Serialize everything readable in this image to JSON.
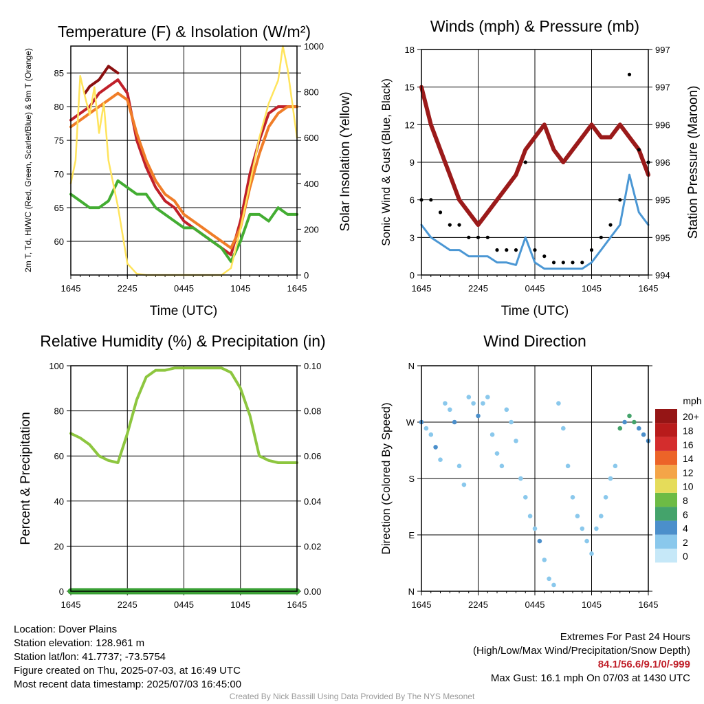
{
  "chart_data": [
    {
      "type": "line",
      "title": "Temperature (F) & Insolation (W/m²)",
      "ylabel_left": "2m T, Td, HI/WC (Red, Green, Scarlet/Blue) & 9m T (Orange)",
      "ylabel_right": "Solar Insolation (Yellow)",
      "xlabel": "Time (UTC)",
      "x_ticks": [
        "1645",
        "2245",
        "0445",
        "1045",
        "1645"
      ],
      "ylim": [
        55,
        89
      ],
      "y_ticks": [
        60,
        65,
        70,
        75,
        80,
        85
      ],
      "y2lim": [
        0,
        1000
      ],
      "y2_ticks": [
        0,
        200,
        400,
        600,
        800,
        1000
      ],
      "series": [
        {
          "color": "#c0202a",
          "axis": "left",
          "points": [
            [
              0,
              78
            ],
            [
              1,
              79
            ],
            [
              2,
              80
            ],
            [
              3,
              82
            ],
            [
              4,
              83
            ],
            [
              5,
              84
            ],
            [
              6,
              82
            ],
            [
              7,
              75
            ],
            [
              8,
              71
            ],
            [
              9,
              68
            ],
            [
              10,
              66
            ],
            [
              11,
              65
            ],
            [
              12,
              63
            ],
            [
              13,
              62
            ],
            [
              14,
              61
            ],
            [
              15,
              60
            ],
            [
              16,
              59
            ],
            [
              17,
              58
            ],
            [
              18,
              63
            ],
            [
              19,
              70
            ],
            [
              20,
              75
            ],
            [
              21,
              79
            ],
            [
              22,
              80
            ],
            [
              23,
              80
            ],
            [
              24,
              80
            ]
          ]
        },
        {
          "color": "#8b1010",
          "axis": "left",
          "points": [
            [
              1.5,
              82
            ],
            [
              2,
              83
            ],
            [
              3,
              84
            ],
            [
              4,
              86
            ],
            [
              5,
              85
            ]
          ]
        },
        {
          "color": "#f07d28",
          "axis": "left",
          "points": [
            [
              0,
              77
            ],
            [
              1,
              78
            ],
            [
              2,
              79
            ],
            [
              3,
              80
            ],
            [
              4,
              81
            ],
            [
              5,
              82
            ],
            [
              6,
              81
            ],
            [
              7,
              76
            ],
            [
              8,
              72
            ],
            [
              9,
              69
            ],
            [
              10,
              67
            ],
            [
              11,
              66
            ],
            [
              12,
              64
            ],
            [
              13,
              63
            ],
            [
              14,
              62
            ],
            [
              15,
              61
            ],
            [
              16,
              60
            ],
            [
              17,
              59
            ],
            [
              18,
              62
            ],
            [
              19,
              68
            ],
            [
              20,
              73
            ],
            [
              21,
              77
            ],
            [
              22,
              79
            ],
            [
              23,
              80
            ],
            [
              24,
              80
            ]
          ]
        },
        {
          "color": "#43ad32",
          "axis": "left",
          "points": [
            [
              0,
              67
            ],
            [
              1,
              66
            ],
            [
              2,
              65
            ],
            [
              3,
              65
            ],
            [
              4,
              66
            ],
            [
              5,
              69
            ],
            [
              6,
              68
            ],
            [
              7,
              67
            ],
            [
              8,
              67
            ],
            [
              9,
              65
            ],
            [
              10,
              64
            ],
            [
              11,
              63
            ],
            [
              12,
              62
            ],
            [
              13,
              62
            ],
            [
              14,
              61
            ],
            [
              15,
              60
            ],
            [
              16,
              59
            ],
            [
              17,
              57
            ],
            [
              18,
              60
            ],
            [
              19,
              64
            ],
            [
              20,
              64
            ],
            [
              21,
              63
            ],
            [
              22,
              65
            ],
            [
              23,
              64
            ],
            [
              24,
              64
            ]
          ]
        },
        {
          "color": "#ffe45c",
          "axis": "right",
          "points": [
            [
              0,
              400
            ],
            [
              0.5,
              500
            ],
            [
              1,
              870
            ],
            [
              1.5,
              780
            ],
            [
              2,
              700
            ],
            [
              2.5,
              820
            ],
            [
              3,
              620
            ],
            [
              3.5,
              750
            ],
            [
              4,
              500
            ],
            [
              5,
              300
            ],
            [
              6,
              50
            ],
            [
              7,
              5
            ],
            [
              8,
              0
            ],
            [
              16,
              0
            ],
            [
              17,
              30
            ],
            [
              18,
              200
            ],
            [
              19,
              400
            ],
            [
              20,
              600
            ],
            [
              21,
              750
            ],
            [
              22,
              850
            ],
            [
              22.5,
              1000
            ],
            [
              23,
              900
            ],
            [
              24,
              600
            ]
          ]
        }
      ]
    },
    {
      "type": "line",
      "title": "Winds (mph) & Pressure (mb)",
      "ylabel_left": "Sonic Wind & Gust (Blue, Black)",
      "ylabel_right": "Station Pressure (Maroon)",
      "xlabel": "Time (UTC)",
      "x_ticks": [
        "1645",
        "2245",
        "0445",
        "1045",
        "1645"
      ],
      "ylim": [
        0,
        18
      ],
      "y_ticks": [
        0,
        3,
        6,
        9,
        12,
        15,
        18
      ],
      "y2_tick_labels": [
        "994",
        "995",
        "995",
        "996",
        "996",
        "997",
        "997"
      ],
      "series": [
        {
          "color": "#9b1a1a",
          "axis": "left",
          "points": [
            [
              0,
              15
            ],
            [
              1,
              12
            ],
            [
              2,
              10
            ],
            [
              3,
              8
            ],
            [
              4,
              6
            ],
            [
              5,
              5
            ],
            [
              6,
              4
            ],
            [
              7,
              5
            ],
            [
              8,
              6
            ],
            [
              9,
              7
            ],
            [
              10,
              8
            ],
            [
              11,
              10
            ],
            [
              12,
              11
            ],
            [
              13,
              12
            ],
            [
              14,
              10
            ],
            [
              15,
              9
            ],
            [
              16,
              10
            ],
            [
              17,
              11
            ],
            [
              18,
              12
            ],
            [
              19,
              11
            ],
            [
              20,
              11
            ],
            [
              21,
              12
            ],
            [
              22,
              11
            ],
            [
              23,
              10
            ],
            [
              24,
              8
            ]
          ]
        },
        {
          "color": "#4b97d4",
          "axis": "left",
          "points": [
            [
              0,
              4
            ],
            [
              1,
              3
            ],
            [
              2,
              2.5
            ],
            [
              3,
              2
            ],
            [
              4,
              2
            ],
            [
              5,
              1.5
            ],
            [
              6,
              1.5
            ],
            [
              7,
              1.5
            ],
            [
              8,
              1
            ],
            [
              9,
              1
            ],
            [
              10,
              0.8
            ],
            [
              11,
              3
            ],
            [
              12,
              1
            ],
            [
              13,
              0.5
            ],
            [
              14,
              0.5
            ],
            [
              15,
              0.5
            ],
            [
              16,
              0.5
            ],
            [
              17,
              0.5
            ],
            [
              18,
              1
            ],
            [
              19,
              2
            ],
            [
              20,
              3
            ],
            [
              21,
              4
            ],
            [
              22,
              8
            ],
            [
              23,
              5
            ],
            [
              24,
              4
            ]
          ]
        }
      ],
      "gust_points": [
        [
          0,
          6
        ],
        [
          1,
          6
        ],
        [
          2,
          5
        ],
        [
          3,
          4
        ],
        [
          4,
          4
        ],
        [
          5,
          3
        ],
        [
          6,
          3
        ],
        [
          7,
          3
        ],
        [
          8,
          2
        ],
        [
          9,
          2
        ],
        [
          10,
          2
        ],
        [
          11,
          9
        ],
        [
          12,
          2
        ],
        [
          13,
          1.5
        ],
        [
          14,
          1
        ],
        [
          15,
          1
        ],
        [
          16,
          1
        ],
        [
          17,
          1
        ],
        [
          18,
          2
        ],
        [
          19,
          3
        ],
        [
          20,
          4
        ],
        [
          21,
          6
        ],
        [
          22,
          16
        ],
        [
          23,
          10
        ],
        [
          24,
          9
        ]
      ]
    },
    {
      "type": "line",
      "title": "Relative Humidity (%) & Precipitation (in)",
      "ylabel": "Percent & Precipitation",
      "x_ticks": [
        "1645",
        "2245",
        "0445",
        "1045",
        "1645"
      ],
      "ylim": [
        0,
        100
      ],
      "y_ticks": [
        0,
        20,
        40,
        60,
        80,
        100
      ],
      "y2_tick_labels": [
        "0.00",
        "0.02",
        "0.04",
        "0.06",
        "0.08",
        "0.10"
      ],
      "series": [
        {
          "color": "#8dc63f",
          "points": [
            [
              0,
              70
            ],
            [
              1,
              68
            ],
            [
              2,
              65
            ],
            [
              3,
              60
            ],
            [
              4,
              58
            ],
            [
              5,
              57
            ],
            [
              6,
              70
            ],
            [
              7,
              85
            ],
            [
              8,
              95
            ],
            [
              9,
              98
            ],
            [
              10,
              98
            ],
            [
              11,
              99
            ],
            [
              12,
              99
            ],
            [
              13,
              99
            ],
            [
              14,
              99
            ],
            [
              15,
              99
            ],
            [
              16,
              99
            ],
            [
              17,
              97
            ],
            [
              18,
              90
            ],
            [
              19,
              78
            ],
            [
              20,
              60
            ],
            [
              21,
              58
            ],
            [
              22,
              57
            ],
            [
              23,
              57
            ],
            [
              24,
              57
            ]
          ]
        },
        {
          "color": "#3aa035",
          "points": [
            [
              0,
              0
            ],
            [
              24,
              0
            ]
          ]
        }
      ]
    },
    {
      "type": "scatter",
      "title": "Wind Direction",
      "ylabel": "Direction (Colored By Speed)",
      "x_ticks": [
        "1645",
        "2245",
        "0445",
        "1045",
        "1645"
      ],
      "y_tick_labels": [
        "N",
        "E",
        "S",
        "W",
        "N"
      ],
      "colorbar_title": "mph",
      "colorbar_labels": [
        "0",
        "2",
        "4",
        "6",
        "8",
        "10",
        "12",
        "14",
        "16",
        "18",
        "20+"
      ],
      "colorbar_colors": [
        "#c6e8f8",
        "#8ac8ec",
        "#4b8fcb",
        "#44a36b",
        "#6dbb45",
        "#e5dc5a",
        "#f4a548",
        "#ec6428",
        "#d42d2d",
        "#b81b1b",
        "#951515"
      ],
      "points": [
        [
          0,
          270,
          3
        ],
        [
          0.5,
          260,
          2
        ],
        [
          1,
          250,
          1
        ],
        [
          1.5,
          230,
          3
        ],
        [
          2,
          210,
          1
        ],
        [
          2.5,
          300,
          1
        ],
        [
          3,
          290,
          2
        ],
        [
          3.5,
          270,
          3
        ],
        [
          4,
          200,
          2
        ],
        [
          4.5,
          170,
          2
        ],
        [
          5,
          310,
          1
        ],
        [
          5.5,
          300,
          2
        ],
        [
          6,
          280,
          3
        ],
        [
          6.5,
          300,
          1
        ],
        [
          7,
          310,
          1
        ],
        [
          7.5,
          250,
          1
        ],
        [
          8,
          220,
          1
        ],
        [
          8.5,
          200,
          1
        ],
        [
          9,
          290,
          2
        ],
        [
          9.5,
          270,
          1
        ],
        [
          10,
          240,
          1
        ],
        [
          10.5,
          180,
          1
        ],
        [
          11,
          150,
          1
        ],
        [
          11.5,
          120,
          1
        ],
        [
          12,
          100,
          1
        ],
        [
          12.5,
          80,
          3
        ],
        [
          13,
          50,
          1
        ],
        [
          13.5,
          20,
          1
        ],
        [
          14,
          10,
          1
        ],
        [
          14.5,
          300,
          1
        ],
        [
          15,
          260,
          1
        ],
        [
          15.5,
          200,
          1
        ],
        [
          16,
          150,
          1
        ],
        [
          16.5,
          120,
          1
        ],
        [
          17,
          100,
          1
        ],
        [
          17.5,
          80,
          1
        ],
        [
          18,
          60,
          1
        ],
        [
          18.5,
          100,
          2
        ],
        [
          19,
          120,
          2
        ],
        [
          19.5,
          150,
          2
        ],
        [
          20,
          180,
          1
        ],
        [
          20.5,
          200,
          2
        ],
        [
          21,
          260,
          5
        ],
        [
          21.5,
          270,
          3
        ],
        [
          22,
          280,
          6
        ],
        [
          22.5,
          270,
          5
        ],
        [
          23,
          260,
          3
        ],
        [
          23.5,
          250,
          3
        ],
        [
          24,
          240,
          3
        ]
      ]
    }
  ],
  "info": {
    "location": "Location: Dover Plains",
    "elevation": "Station elevation: 128.961 m",
    "latlon": "Station lat/lon: 41.7737; -73.5754",
    "created": "Figure created on Thu, 2025-07-03, at 16:49 UTC",
    "recent": "Most recent data timestamp: 2025/07/03 16:45:00"
  },
  "extremes": {
    "title": "Extremes For Past 24 Hours",
    "subtitle": "(High/Low/Max Wind/Precipitation/Snow Depth)",
    "values": "84.1/56.6/9.1/0/-999",
    "max_gust": "Max Gust: 16.1 mph On 07/03 at 1430 UTC"
  },
  "credit": "Created By Nick Bassill Using Data Provided By The NYS Mesonet"
}
